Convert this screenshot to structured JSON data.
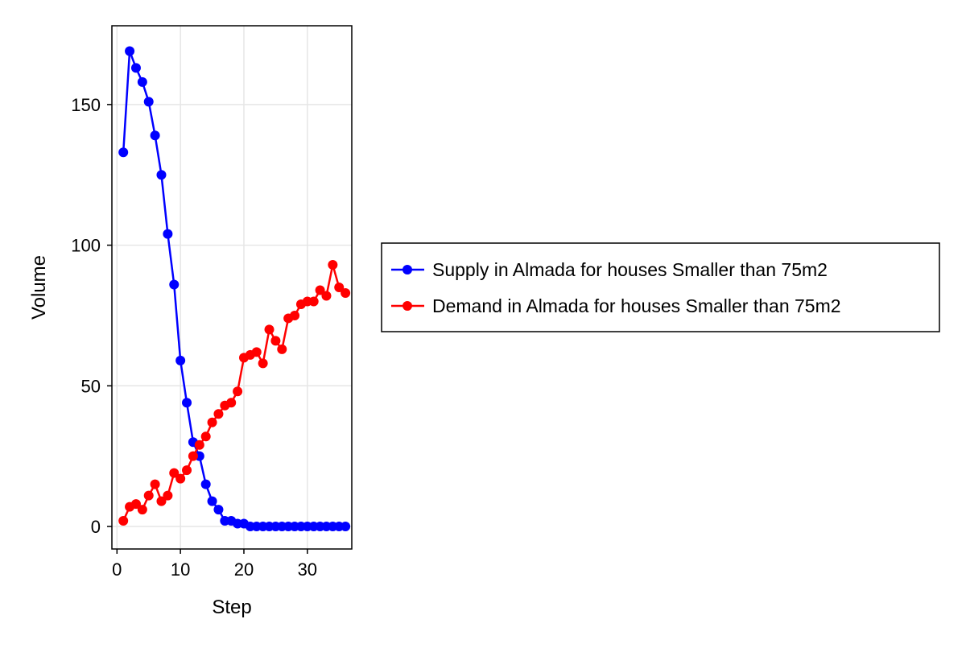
{
  "chart_data": {
    "type": "line",
    "title": "",
    "xlabel": "Step",
    "ylabel": "Volume",
    "xlim": [
      -0.8,
      37
    ],
    "ylim": [
      -8,
      178
    ],
    "x_ticks": [
      0,
      10,
      20,
      30
    ],
    "y_ticks": [
      0,
      50,
      100,
      150
    ],
    "grid": true,
    "legend_position": "right",
    "x": [
      1,
      2,
      3,
      4,
      5,
      6,
      7,
      8,
      9,
      10,
      11,
      12,
      13,
      14,
      15,
      16,
      17,
      18,
      19,
      20,
      21,
      22,
      23,
      24,
      25,
      26,
      27,
      28,
      29,
      30,
      31,
      32,
      33,
      34,
      35,
      36
    ],
    "series": [
      {
        "name": "Supply in Almada for houses Smaller than 75m2",
        "color": "#0000ff",
        "values": [
          133,
          169,
          163,
          158,
          151,
          139,
          125,
          104,
          86,
          59,
          44,
          30,
          25,
          15,
          9,
          6,
          2,
          2,
          1,
          1,
          0,
          0,
          0,
          0,
          0,
          0,
          0,
          0,
          0,
          0,
          0,
          0,
          0,
          0,
          0,
          0
        ]
      },
      {
        "name": "Demand in Almada for houses Smaller than 75m2",
        "color": "#ff0000",
        "values": [
          2,
          7,
          8,
          6,
          11,
          15,
          9,
          11,
          19,
          17,
          20,
          25,
          29,
          32,
          37,
          40,
          43,
          44,
          48,
          60,
          61,
          62,
          58,
          70,
          66,
          63,
          74,
          75,
          79,
          80,
          80,
          84,
          82,
          93,
          85,
          83
        ]
      }
    ]
  }
}
